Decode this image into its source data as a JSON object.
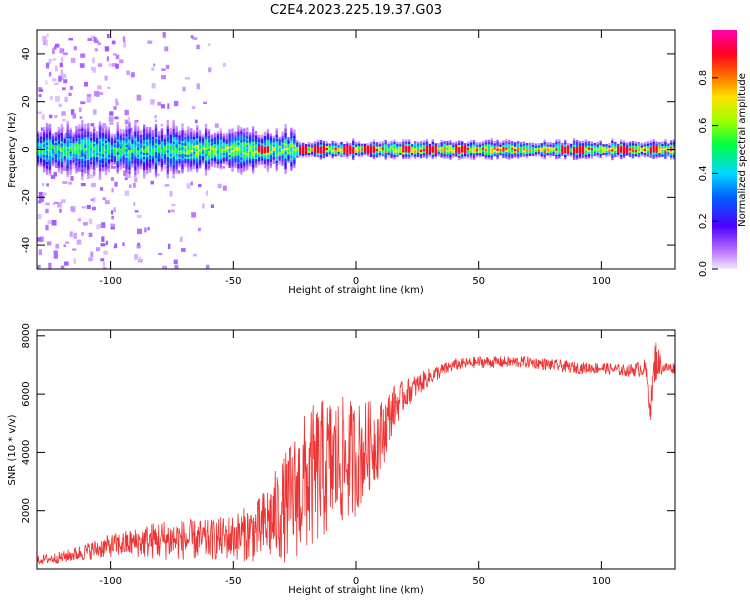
{
  "title": "C2E4.2023.225.19.37.G03",
  "colors": {
    "snr_line": "#ee3333",
    "frame": "#000000"
  },
  "chart_data": [
    {
      "type": "heatmap",
      "xlabel": "Height of straight line (km)",
      "ylabel": "Frequency (Hz)",
      "xlim": [
        -130,
        130
      ],
      "ylim": [
        -50,
        50
      ],
      "xticks": [
        -100,
        -50,
        0,
        50,
        100
      ],
      "yticks": [
        -40,
        -20,
        0,
        20,
        40
      ],
      "colorbar": {
        "label": "Normalized spectral amplitude",
        "range": [
          0,
          1
        ],
        "ticks": [
          "0.0",
          "0.2",
          "0.4",
          "0.6",
          "0.8"
        ],
        "tick_values": [
          0.0,
          0.2,
          0.4,
          0.6,
          0.8
        ],
        "colormap": "rainbow (white-purple-blue-cyan-green-yellow-red-magenta)"
      },
      "band": {
        "center_freq": 0,
        "segments": [
          {
            "x_from": -130,
            "x_to": -70,
            "half_width_hz": 6,
            "peak_amplitude": 0.5
          },
          {
            "x_from": -70,
            "x_to": -25,
            "half_width_hz": 5,
            "peak_amplitude": 0.6
          },
          {
            "x_from": -25,
            "x_to": 130,
            "half_width_hz": 2,
            "peak_amplitude": 0.8
          }
        ],
        "peaks_x": [
          -38,
          -22,
          -15,
          -3,
          5,
          20,
          30,
          42,
          85,
          90,
          108,
          121
        ]
      }
    },
    {
      "type": "line",
      "xlabel": "Height of straight line (km)",
      "ylabel": "SNR (10 * v/v)",
      "xlim": [
        -130,
        130
      ],
      "ylim": [
        0,
        8200
      ],
      "xticks": [
        -100,
        -50,
        0,
        50,
        100
      ],
      "yticks": [
        2000,
        4000,
        6000,
        8000
      ],
      "series": [
        {
          "x": [
            -130,
            -120,
            -110,
            -100,
            -90,
            -80,
            -70,
            -60,
            -50,
            -40,
            -30,
            -25,
            -20,
            -15,
            -10,
            -5,
            0,
            5,
            10,
            15,
            20,
            25,
            30,
            35,
            40,
            50,
            60,
            70,
            80,
            90,
            100,
            110,
            118,
            120,
            122,
            125,
            130
          ],
          "values": [
            300,
            400,
            600,
            800,
            900,
            1000,
            1000,
            1000,
            1100,
            1300,
            2000,
            2500,
            3000,
            3300,
            3600,
            3700,
            3800,
            4200,
            4500,
            5500,
            6000,
            6300,
            6600,
            6800,
            7000,
            7100,
            7100,
            7100,
            7000,
            6900,
            6900,
            6800,
            6900,
            5500,
            7200,
            6900,
            6900
          ],
          "noise_amplitude": [
            150,
            200,
            300,
            400,
            500,
            700,
            700,
            700,
            800,
            1100,
            1800,
            2200,
            2500,
            2500,
            2400,
            2200,
            2000,
            1600,
            1300,
            800,
            500,
            400,
            300,
            250,
            200,
            200,
            200,
            200,
            200,
            200,
            200,
            200,
            300,
            500,
            800,
            200,
            200
          ]
        }
      ]
    }
  ]
}
